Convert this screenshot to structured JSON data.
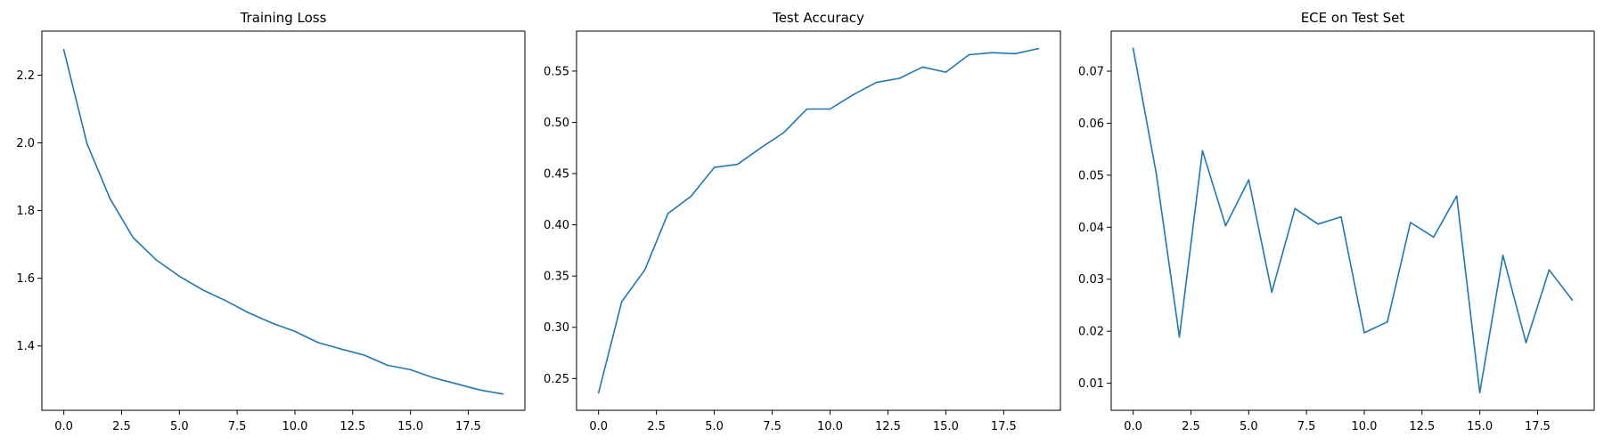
{
  "chart_data": [
    {
      "type": "line",
      "title": "Training Loss",
      "xlabel": "",
      "ylabel": "",
      "xlim": [
        -0.95,
        19.95
      ],
      "ylim": [
        1.21,
        2.33
      ],
      "xticks": [
        0.0,
        2.5,
        5.0,
        7.5,
        10.0,
        12.5,
        15.0,
        17.5
      ],
      "xtick_labels": [
        "0.0",
        "2.5",
        "5.0",
        "7.5",
        "10.0",
        "12.5",
        "15.0",
        "17.5"
      ],
      "yticks": [
        1.4,
        1.6,
        1.8,
        2.0,
        2.2
      ],
      "ytick_labels": [
        "1.4",
        "1.6",
        "1.8",
        "2.0",
        "2.2"
      ],
      "grid": false,
      "color": "#1f77b4",
      "x": [
        0,
        1,
        2,
        3,
        4,
        5,
        6,
        7,
        8,
        9,
        10,
        11,
        12,
        13,
        14,
        15,
        16,
        17,
        18,
        19
      ],
      "values": [
        2.275,
        1.998,
        1.835,
        1.72,
        1.654,
        1.606,
        1.566,
        1.534,
        1.498,
        1.468,
        1.443,
        1.41,
        1.391,
        1.373,
        1.343,
        1.33,
        1.306,
        1.288,
        1.27,
        1.258
      ]
    },
    {
      "type": "line",
      "title": "Test Accuracy",
      "xlabel": "",
      "ylabel": "",
      "xlim": [
        -0.95,
        19.95
      ],
      "ylim": [
        0.219,
        0.589
      ],
      "xticks": [
        0.0,
        2.5,
        5.0,
        7.5,
        10.0,
        12.5,
        15.0,
        17.5
      ],
      "xtick_labels": [
        "0.0",
        "2.5",
        "5.0",
        "7.5",
        "10.0",
        "12.5",
        "15.0",
        "17.5"
      ],
      "yticks": [
        0.25,
        0.3,
        0.35,
        0.4,
        0.45,
        0.5,
        0.55
      ],
      "ytick_labels": [
        "0.25",
        "0.30",
        "0.35",
        "0.40",
        "0.45",
        "0.50",
        "0.55"
      ],
      "grid": false,
      "color": "#1f77b4",
      "x": [
        0,
        1,
        2,
        3,
        4,
        5,
        6,
        7,
        8,
        9,
        10,
        11,
        12,
        13,
        14,
        15,
        16,
        17,
        18,
        19
      ],
      "values": [
        0.236,
        0.325,
        0.356,
        0.411,
        0.428,
        0.456,
        0.459,
        0.475,
        0.49,
        0.513,
        0.513,
        0.527,
        0.539,
        0.543,
        0.554,
        0.549,
        0.566,
        0.568,
        0.567,
        0.572
      ]
    },
    {
      "type": "line",
      "title": "ECE on Test Set",
      "xlabel": "",
      "ylabel": "",
      "xlim": [
        -0.95,
        19.95
      ],
      "ylim": [
        0.0048,
        0.0777
      ],
      "xticks": [
        0.0,
        2.5,
        5.0,
        7.5,
        10.0,
        12.5,
        15.0,
        17.5
      ],
      "xtick_labels": [
        "0.0",
        "2.5",
        "5.0",
        "7.5",
        "10.0",
        "12.5",
        "15.0",
        "17.5"
      ],
      "yticks": [
        0.01,
        0.02,
        0.03,
        0.04,
        0.05,
        0.06,
        0.07
      ],
      "ytick_labels": [
        "0.01",
        "0.02",
        "0.03",
        "0.04",
        "0.05",
        "0.06",
        "0.07"
      ],
      "grid": false,
      "color": "#1f77b4",
      "x": [
        0,
        1,
        2,
        3,
        4,
        5,
        6,
        7,
        8,
        9,
        10,
        11,
        12,
        13,
        14,
        15,
        16,
        17,
        18,
        19
      ],
      "values": [
        0.0744,
        0.0503,
        0.0189,
        0.0547,
        0.0403,
        0.0491,
        0.0275,
        0.0436,
        0.0406,
        0.042,
        0.0197,
        0.0218,
        0.0409,
        0.0381,
        0.046,
        0.0082,
        0.0346,
        0.0178,
        0.0318,
        0.026
      ]
    }
  ]
}
